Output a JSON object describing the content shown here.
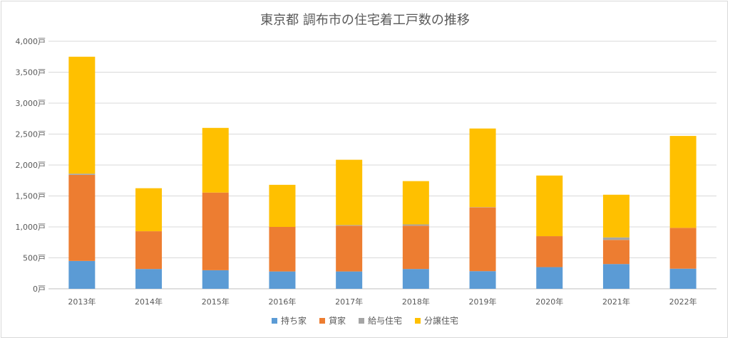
{
  "chart_data": {
    "type": "bar",
    "stacked": true,
    "title": "東京都 調布市の住宅着工戸数の推移",
    "xlabel": "",
    "ylabel": "",
    "ylim": [
      0,
      4000
    ],
    "yticks": [
      "0戸",
      "500戸",
      "1,000戸",
      "1,500戸",
      "2,000戸",
      "2,500戸",
      "3,000戸",
      "3,500戸",
      "4,000戸"
    ],
    "ytick_values": [
      0,
      500,
      1000,
      1500,
      2000,
      2500,
      3000,
      3500,
      4000
    ],
    "grid": true,
    "legend_position": "bottom",
    "categories": [
      "2013年",
      "2014年",
      "2015年",
      "2016年",
      "2017年",
      "2018年",
      "2019年",
      "2020年",
      "2021年",
      "2022年"
    ],
    "series": [
      {
        "name": "持ち家",
        "color": "#5b9bd5",
        "values": [
          450,
          320,
          300,
          280,
          280,
          320,
          285,
          350,
          400,
          325
        ]
      },
      {
        "name": "貸家",
        "color": "#ed7d31",
        "values": [
          1390,
          610,
          1255,
          720,
          740,
          700,
          1030,
          500,
          390,
          660
        ]
      },
      {
        "name": "給与住宅",
        "color": "#a5a5a5",
        "values": [
          20,
          0,
          0,
          0,
          10,
          20,
          5,
          0,
          40,
          0
        ]
      },
      {
        "name": "分譲住宅",
        "color": "#ffc000",
        "values": [
          1890,
          695,
          1045,
          680,
          1055,
          700,
          1270,
          980,
          690,
          1485
        ]
      }
    ]
  }
}
